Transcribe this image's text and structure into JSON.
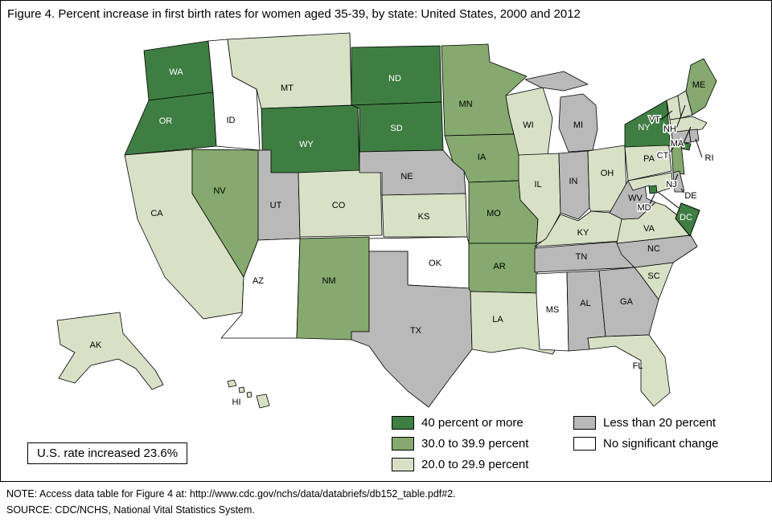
{
  "title": "Figure 4. Percent increase in first birth rates for women aged 35-39, by state: United States, 2000 and 2012",
  "annotation_box": "U.S. rate increased 23.6%",
  "footer": {
    "note": "NOTE: Access data table for Figure 4 at: http://www.cdc.gov/nchs/data/databriefs/db152_table.pdf#2.",
    "source": "SOURCE: CDC/NCHS, National Vital Statistics System."
  },
  "legend": {
    "items": [
      {
        "key": "40plus",
        "label": "40 percent or more",
        "color": "#3f7e42"
      },
      {
        "key": "30to39",
        "label": "30.0 to 39.9 percent",
        "color": "#85a96e"
      },
      {
        "key": "20to29",
        "label": "20.0 to 29.9 percent",
        "color": "#d8e1c6"
      },
      {
        "key": "lt20",
        "label": "Less than 20 percent",
        "color": "#b9b9b9"
      },
      {
        "key": "none",
        "label": "No significant change",
        "color": "#ffffff"
      }
    ]
  },
  "chart_data": {
    "type": "choropleth",
    "region": "United States",
    "title": "Percent increase in first birth rates for women aged 35-39, by state, 2000 and 2012",
    "us_overall": "U.S. rate increased 23.6%",
    "categories": [
      "40 percent or more",
      "30.0 to 39.9 percent",
      "20.0 to 29.9 percent",
      "Less than 20 percent",
      "No significant change"
    ],
    "states": [
      {
        "abbr": "WA",
        "category": "40plus"
      },
      {
        "abbr": "OR",
        "category": "40plus"
      },
      {
        "abbr": "CA",
        "category": "20to29"
      },
      {
        "abbr": "ID",
        "category": "none"
      },
      {
        "abbr": "NV",
        "category": "30to39"
      },
      {
        "abbr": "MT",
        "category": "20to29"
      },
      {
        "abbr": "WY",
        "category": "40plus"
      },
      {
        "abbr": "UT",
        "category": "lt20"
      },
      {
        "abbr": "AZ",
        "category": "none"
      },
      {
        "abbr": "NM",
        "category": "30to39"
      },
      {
        "abbr": "CO",
        "category": "20to29"
      },
      {
        "abbr": "ND",
        "category": "40plus"
      },
      {
        "abbr": "SD",
        "category": "40plus"
      },
      {
        "abbr": "NE",
        "category": "lt20"
      },
      {
        "abbr": "KS",
        "category": "20to29"
      },
      {
        "abbr": "OK",
        "category": "none"
      },
      {
        "abbr": "TX",
        "category": "lt20"
      },
      {
        "abbr": "MN",
        "category": "30to39"
      },
      {
        "abbr": "IA",
        "category": "30to39"
      },
      {
        "abbr": "MO",
        "category": "30to39"
      },
      {
        "abbr": "AR",
        "category": "30to39"
      },
      {
        "abbr": "LA",
        "category": "20to29"
      },
      {
        "abbr": "WI",
        "category": "20to29"
      },
      {
        "abbr": "IL",
        "category": "20to29"
      },
      {
        "abbr": "IN",
        "category": "lt20"
      },
      {
        "abbr": "MI",
        "category": "lt20"
      },
      {
        "abbr": "OH",
        "category": "20to29"
      },
      {
        "abbr": "KY",
        "category": "20to29"
      },
      {
        "abbr": "TN",
        "category": "lt20"
      },
      {
        "abbr": "MS",
        "category": "none"
      },
      {
        "abbr": "AL",
        "category": "lt20"
      },
      {
        "abbr": "GA",
        "category": "lt20"
      },
      {
        "abbr": "FL",
        "category": "20to29"
      },
      {
        "abbr": "SC",
        "category": "20to29"
      },
      {
        "abbr": "NC",
        "category": "lt20"
      },
      {
        "abbr": "VA",
        "category": "20to29"
      },
      {
        "abbr": "WV",
        "category": "lt20"
      },
      {
        "abbr": "PA",
        "category": "20to29"
      },
      {
        "abbr": "NY",
        "category": "40plus"
      },
      {
        "abbr": "NJ",
        "category": "30to39"
      },
      {
        "abbr": "VT",
        "category": "20to29"
      },
      {
        "abbr": "NH",
        "category": "20to29"
      },
      {
        "abbr": "ME",
        "category": "30to39"
      },
      {
        "abbr": "MA",
        "category": "20to29"
      },
      {
        "abbr": "CT",
        "category": "lt20"
      },
      {
        "abbr": "RI",
        "category": "lt20"
      },
      {
        "abbr": "DE",
        "category": "lt20"
      },
      {
        "abbr": "MD",
        "category": "20to29"
      },
      {
        "abbr": "DC",
        "category": "40plus"
      },
      {
        "abbr": "AK",
        "category": "20to29"
      },
      {
        "abbr": "HI",
        "category": "20to29"
      }
    ]
  }
}
